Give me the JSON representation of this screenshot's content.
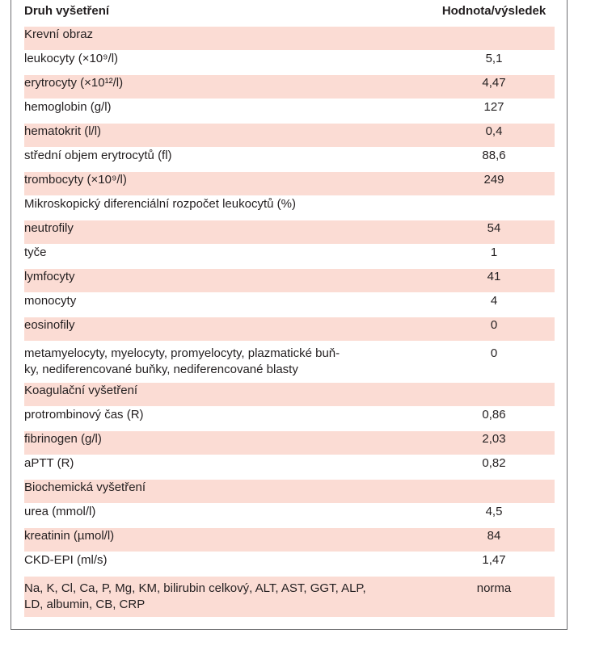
{
  "header": {
    "col_name": "Druh vyšetření",
    "col_value": "Hodnota/výsledek"
  },
  "rows": [
    {
      "type": "section",
      "name": "Krevní obraz",
      "value": ""
    },
    {
      "type": "item",
      "name": "leukocyty (×10⁹/l)",
      "value": "5,1"
    },
    {
      "type": "item",
      "name": "erytrocyty (×10¹²/l)",
      "value": "4,47"
    },
    {
      "type": "item",
      "name": "hemoglobin (g/l)",
      "value": "127"
    },
    {
      "type": "item",
      "name": "hematokrit (l/l)",
      "value": "0,4"
    },
    {
      "type": "item",
      "name": "střední objem erytrocytů (fl)",
      "value": "88,6"
    },
    {
      "type": "item",
      "name": "trombocyty (×10⁹/l)",
      "value": "249"
    },
    {
      "type": "section",
      "name": "Mikroskopický diferenciální rozpočet leukocytů (%)",
      "value": ""
    },
    {
      "type": "item",
      "name": "neutrofily",
      "value": "54"
    },
    {
      "type": "item",
      "name": "tyče",
      "value": "1"
    },
    {
      "type": "item",
      "name": "lymfocyty",
      "value": "41"
    },
    {
      "type": "item",
      "name": "monocyty",
      "value": "4"
    },
    {
      "type": "item",
      "name": "eosinofily",
      "value": "0"
    },
    {
      "type": "item",
      "name": "metamyelocyty, myelocyty, promyelocyty, plazmatické buň-\nky, nediferencované buňky, nediferencované blasty",
      "value": "0"
    },
    {
      "type": "section",
      "name": "Koagulační vyšetření",
      "value": ""
    },
    {
      "type": "item",
      "name": "protrombinový čas (R)",
      "value": "0,86"
    },
    {
      "type": "item",
      "name": "fibrinogen (g/l)",
      "value": "2,03"
    },
    {
      "type": "item",
      "name": "aPTT (R)",
      "value": "0,82"
    },
    {
      "type": "section",
      "name": "Biochemická vyšetření",
      "value": ""
    },
    {
      "type": "item",
      "name": "urea (mmol/l)",
      "value": "4,5"
    },
    {
      "type": "item",
      "name": "kreatinin (µmol/l)",
      "value": "84"
    },
    {
      "type": "item",
      "name": "CKD-EPI (ml/s)",
      "value": "1,47"
    },
    {
      "type": "item",
      "name": "Na, K, Cl, Ca, P, Mg, KM, bilirubin celkový, ALT, AST, GGT, ALP,\nLD, albumin, CB, CRP",
      "value": "norma"
    }
  ],
  "colors": {
    "stripe": "#fbdcd4",
    "border": "#6d6e71",
    "text": "#231f20"
  }
}
